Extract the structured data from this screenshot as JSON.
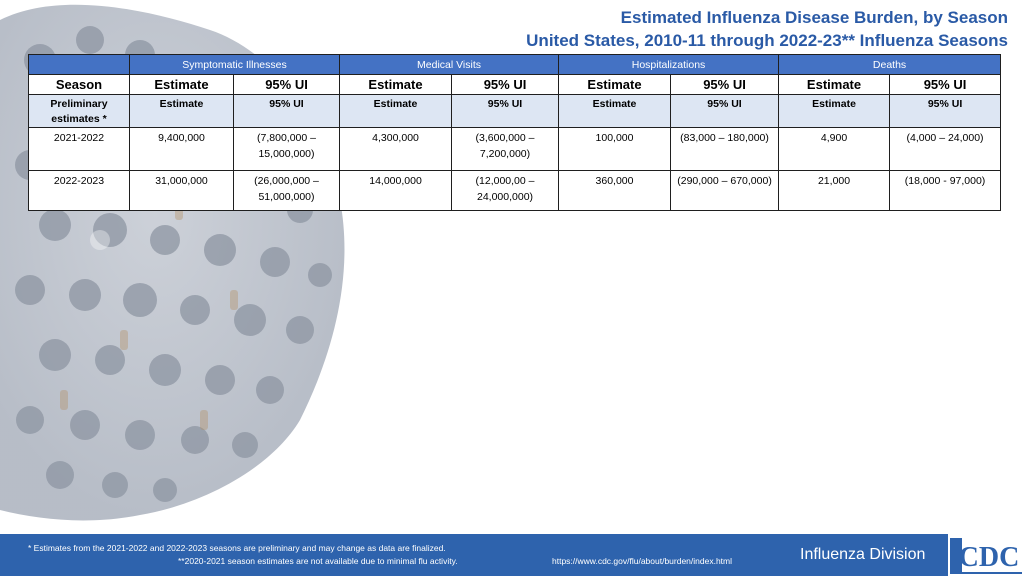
{
  "title": {
    "line1": "Estimated Influenza Disease Burden, by Season",
    "line2": "United States, 2010-11 through 2022-23** Influenza Seasons"
  },
  "table": {
    "groups": [
      "Symptomatic Illnesses",
      "Medical Visits",
      "Hospitalizations",
      "Deaths"
    ],
    "subheaders": [
      "Season",
      "Estimate",
      "95% UI",
      "Estimate",
      "95% UI",
      "Estimate",
      "95% UI",
      "Estimate",
      "95% UI"
    ],
    "preliminary_row": [
      "Preliminary estimates *",
      "Estimate",
      "95% UI",
      "Estimate",
      "95% UI",
      "Estimate",
      "95% UI",
      "Estimate",
      "95% UI"
    ],
    "rows": [
      [
        "2021-2022",
        "9,400,000",
        "(7,800,000 – 15,000,000)",
        "4,300,000",
        "(3,600,000 – 7,200,000)",
        "100,000",
        "(83,000 – 180,000)",
        "4,900",
        "(4,000 – 24,000)"
      ],
      [
        "2022-2023",
        "31,000,000",
        "(26,000,000 – 51,000,000)",
        "14,000,000",
        "(12,000,00 – 24,000,000)",
        "360,000",
        "(290,000 – 670,000)",
        "21,000",
        "(18,000 - 97,000)"
      ]
    ]
  },
  "footer": {
    "note1": "* Estimates from the 2021-2022 and 2022-2023 seasons are preliminary and may change as data are finalized.",
    "note2": "**2020-2021 season estimates are not available due to minimal flu activity.",
    "url": "https://www.cdc.gov/flu/about/burden/index.html",
    "division": "Influenza Division",
    "logo_text": "CDC"
  },
  "colors": {
    "title": "#2a5aa6",
    "header_fill": "#4472c4",
    "preliminary_fill": "#dde6f3",
    "footer_fill": "#2e63ad"
  },
  "icons": {
    "background": "influenza-virus-illustration",
    "logo": "cdc-logo"
  }
}
